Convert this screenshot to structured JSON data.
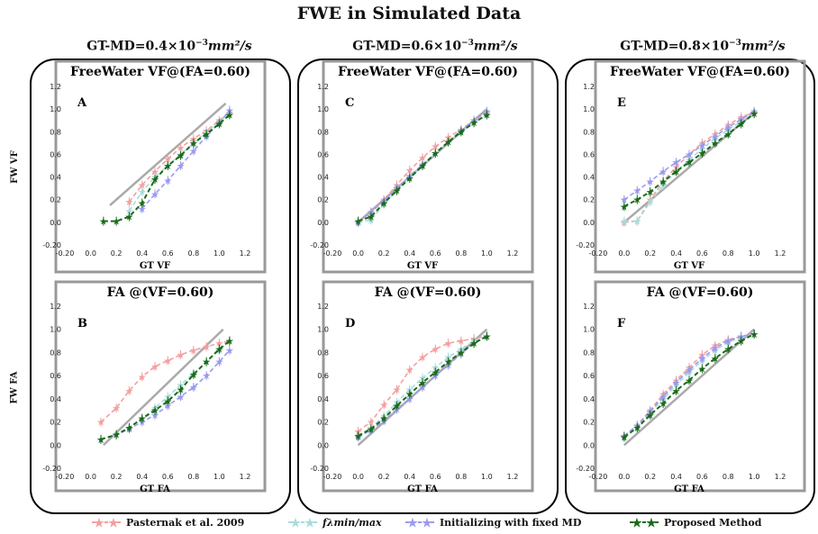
{
  "main_title": "FWE in Simulated Data",
  "column_titles": [
    {
      "prefix": "GT-MD=0.4×10",
      "exp": "−3",
      "unit": "mm²/s"
    },
    {
      "prefix": "GT-MD=0.6×10",
      "exp": "−3",
      "unit": "mm²/s"
    },
    {
      "prefix": "GT-MD=0.8×10",
      "exp": "−3",
      "unit": "mm²/s"
    }
  ],
  "row_labels": [
    "FW VF",
    "FW FA"
  ],
  "legend": [
    {
      "label": "Pasternak et al. 2009",
      "color": "#f4a0a0"
    },
    {
      "label": "fλmin/max",
      "color": "#a8dcdc"
    },
    {
      "label": "Initializing with fixed MD",
      "color": "#9a9af0"
    },
    {
      "label": "Proposed Method",
      "color": "#1a6b1a"
    }
  ],
  "chart_data": [
    {
      "type": "line",
      "panel_label": "A",
      "title": "FreeWater VF@(FA=0.60)",
      "xlabel": "GT VF",
      "ylabel": "FW VF",
      "xlim": [
        -0.2,
        1.2
      ],
      "ylim": [
        -0.2,
        1.2
      ],
      "xticks": [
        "-0.20",
        "0.0",
        "0.2",
        "0.4",
        "0.6",
        "0.8",
        "1.0",
        "1.2"
      ],
      "yticks": [
        "-0.20",
        "0.0",
        "0.2",
        "0.4",
        "0.6",
        "0.8",
        "1.0",
        "1.2"
      ],
      "identity": [
        [
          0.15,
          0.15
        ],
        [
          1.05,
          1.05
        ]
      ],
      "series": [
        {
          "name": "Pasternak et al. 2009",
          "color": "#f4a0a0",
          "x": [
            0.3,
            0.4,
            0.5,
            0.6,
            0.7,
            0.8,
            0.9,
            1.0,
            1.08
          ],
          "y": [
            0.18,
            0.33,
            0.45,
            0.56,
            0.66,
            0.74,
            0.81,
            0.9,
            0.97
          ]
        },
        {
          "name": "fλmin/max",
          "color": "#a8dcdc",
          "x": [
            0.3,
            0.4,
            0.5,
            0.6,
            0.7,
            0.8,
            0.9,
            1.0,
            1.08
          ],
          "y": [
            0.1,
            0.27,
            0.4,
            0.5,
            0.6,
            0.7,
            0.8,
            0.89,
            0.96
          ]
        },
        {
          "name": "Initializing with fixed MD",
          "color": "#9a9af0",
          "x": [
            0.4,
            0.5,
            0.6,
            0.7,
            0.8,
            0.9,
            1.0,
            1.08
          ],
          "y": [
            0.12,
            0.25,
            0.37,
            0.5,
            0.63,
            0.76,
            0.88,
            0.99
          ]
        },
        {
          "name": "Proposed Method",
          "color": "#1a6b1a",
          "x": [
            0.1,
            0.2,
            0.3,
            0.4,
            0.5,
            0.6,
            0.7,
            0.8,
            0.9,
            1.0,
            1.08
          ],
          "y": [
            0.01,
            0.01,
            0.05,
            0.17,
            0.38,
            0.5,
            0.59,
            0.7,
            0.78,
            0.87,
            0.95
          ]
        }
      ]
    },
    {
      "type": "line",
      "panel_label": "B",
      "title": "FA @(VF=0.60)",
      "xlabel": "GT FA",
      "ylabel": "FW FA",
      "xlim": [
        -0.2,
        1.2
      ],
      "ylim": [
        -0.2,
        1.2
      ],
      "xticks": [
        "-0.20",
        "0.0",
        "0.2",
        "0.4",
        "0.6",
        "0.8",
        "1.0",
        "1.2"
      ],
      "yticks": [
        "-0.20",
        "0.0",
        "0.2",
        "0.4",
        "0.6",
        "0.8",
        "1.0",
        "1.2"
      ],
      "identity": [
        [
          0.1,
          0.0
        ],
        [
          1.03,
          1.0
        ]
      ],
      "series": [
        {
          "name": "Pasternak et al. 2009",
          "color": "#f4a0a0",
          "x": [
            0.08,
            0.2,
            0.3,
            0.4,
            0.5,
            0.6,
            0.7,
            0.8,
            0.9,
            1.0,
            1.08
          ],
          "y": [
            0.2,
            0.32,
            0.47,
            0.59,
            0.68,
            0.73,
            0.78,
            0.82,
            0.85,
            0.88,
            0.9
          ]
        },
        {
          "name": "fλmin/max",
          "color": "#a8dcdc",
          "x": [
            0.08,
            0.2,
            0.3,
            0.4,
            0.5,
            0.6,
            0.7,
            0.8,
            0.9,
            1.0,
            1.08
          ],
          "y": [
            0.05,
            0.09,
            0.15,
            0.23,
            0.32,
            0.42,
            0.52,
            0.62,
            0.72,
            0.82,
            0.9
          ]
        },
        {
          "name": "Initializing with fixed MD",
          "color": "#9a9af0",
          "x": [
            0.08,
            0.2,
            0.3,
            0.4,
            0.5,
            0.6,
            0.7,
            0.8,
            0.9,
            1.0,
            1.08
          ],
          "y": [
            0.05,
            0.09,
            0.14,
            0.2,
            0.26,
            0.34,
            0.42,
            0.5,
            0.6,
            0.72,
            0.82
          ]
        },
        {
          "name": "Proposed Method",
          "color": "#1a6b1a",
          "x": [
            0.08,
            0.2,
            0.3,
            0.4,
            0.5,
            0.6,
            0.7,
            0.8,
            0.9,
            1.0,
            1.08
          ],
          "y": [
            0.05,
            0.09,
            0.15,
            0.23,
            0.3,
            0.38,
            0.48,
            0.61,
            0.72,
            0.83,
            0.9
          ]
        }
      ]
    },
    {
      "type": "line",
      "panel_label": "C",
      "title": "FreeWater VF@(FA=0.60)",
      "xlabel": "GT VF",
      "ylabel": "FW VF",
      "xlim": [
        -0.2,
        1.2
      ],
      "ylim": [
        -0.2,
        1.2
      ],
      "xticks": [
        "-0.20",
        "0.0",
        "0.2",
        "0.4",
        "0.6",
        "0.8",
        "1.0",
        "1.2"
      ],
      "yticks": [
        "-0.20",
        "0.0",
        "0.2",
        "0.4",
        "0.6",
        "0.8",
        "1.0",
        "1.2"
      ],
      "identity": [
        [
          0.0,
          0.0
        ],
        [
          1.0,
          1.0
        ]
      ],
      "series": [
        {
          "name": "Pasternak et al. 2009",
          "color": "#f4a0a0",
          "x": [
            0.0,
            0.1,
            0.2,
            0.3,
            0.4,
            0.5,
            0.6,
            0.7,
            0.8,
            0.9,
            1.0
          ],
          "y": [
            0.0,
            0.09,
            0.2,
            0.33,
            0.46,
            0.57,
            0.67,
            0.75,
            0.82,
            0.9,
            0.97
          ]
        },
        {
          "name": "fλmin/max",
          "color": "#a8dcdc",
          "x": [
            0.0,
            0.1,
            0.2,
            0.3,
            0.4,
            0.5,
            0.6,
            0.7,
            0.8,
            0.9,
            1.0
          ],
          "y": [
            0.0,
            0.02,
            0.16,
            0.28,
            0.4,
            0.5,
            0.61,
            0.71,
            0.8,
            0.88,
            0.95
          ]
        },
        {
          "name": "Initializing with fixed MD",
          "color": "#9a9af0",
          "x": [
            0.0,
            0.1,
            0.2,
            0.3,
            0.4,
            0.5,
            0.6,
            0.7,
            0.8,
            0.9,
            1.0
          ],
          "y": [
            0.0,
            0.09,
            0.19,
            0.3,
            0.41,
            0.51,
            0.61,
            0.71,
            0.81,
            0.9,
            0.98
          ]
        },
        {
          "name": "Proposed Method",
          "color": "#1a6b1a",
          "x": [
            0.0,
            0.1,
            0.2,
            0.3,
            0.4,
            0.5,
            0.6,
            0.7,
            0.8,
            0.9,
            1.0
          ],
          "y": [
            0.01,
            0.05,
            0.17,
            0.28,
            0.39,
            0.5,
            0.61,
            0.71,
            0.8,
            0.88,
            0.95
          ]
        }
      ]
    },
    {
      "type": "line",
      "panel_label": "D",
      "title": "FA @(VF=0.60)",
      "xlabel": "GT FA",
      "ylabel": "FW FA",
      "xlim": [
        -0.2,
        1.2
      ],
      "ylim": [
        -0.2,
        1.2
      ],
      "xticks": [
        "-0.20",
        "0.0",
        "0.2",
        "0.4",
        "0.6",
        "0.8",
        "1.0",
        "1.2"
      ],
      "yticks": [
        "-0.20",
        "0.0",
        "0.2",
        "0.4",
        "0.6",
        "0.8",
        "1.0",
        "1.2"
      ],
      "identity": [
        [
          0.0,
          0.0
        ],
        [
          1.0,
          1.0
        ]
      ],
      "series": [
        {
          "name": "Pasternak et al. 2009",
          "color": "#f4a0a0",
          "x": [
            0.0,
            0.1,
            0.2,
            0.3,
            0.4,
            0.5,
            0.6,
            0.7,
            0.8,
            0.9,
            1.0
          ],
          "y": [
            0.12,
            0.2,
            0.35,
            0.48,
            0.65,
            0.76,
            0.83,
            0.88,
            0.9,
            0.92,
            0.94
          ]
        },
        {
          "name": "fλmin/max",
          "color": "#a8dcdc",
          "x": [
            0.0,
            0.1,
            0.2,
            0.3,
            0.4,
            0.5,
            0.6,
            0.7,
            0.8,
            0.9,
            1.0
          ],
          "y": [
            0.08,
            0.15,
            0.25,
            0.37,
            0.48,
            0.58,
            0.67,
            0.76,
            0.83,
            0.9,
            0.94
          ]
        },
        {
          "name": "Initializing with fixed MD",
          "color": "#9a9af0",
          "x": [
            0.0,
            0.1,
            0.2,
            0.3,
            0.4,
            0.5,
            0.6,
            0.7,
            0.8,
            0.9,
            1.0
          ],
          "y": [
            0.07,
            0.13,
            0.21,
            0.31,
            0.4,
            0.5,
            0.6,
            0.69,
            0.79,
            0.88,
            0.94
          ]
        },
        {
          "name": "Proposed Method",
          "color": "#1a6b1a",
          "x": [
            0.0,
            0.1,
            0.2,
            0.3,
            0.4,
            0.5,
            0.6,
            0.7,
            0.8,
            0.9,
            1.0
          ],
          "y": [
            0.08,
            0.14,
            0.23,
            0.34,
            0.44,
            0.54,
            0.63,
            0.72,
            0.8,
            0.88,
            0.94
          ]
        }
      ]
    },
    {
      "type": "line",
      "panel_label": "E",
      "title": "FreeWater VF@(FA=0.60)",
      "xlabel": "GT VF",
      "ylabel": "FW VF",
      "xlim": [
        -0.2,
        1.2
      ],
      "ylim": [
        -0.2,
        1.2
      ],
      "xticks": [
        "-0.20",
        "0.0",
        "0.2",
        "0.4",
        "0.6",
        "0.8",
        "1.0",
        "1.2"
      ],
      "yticks": [
        "-0.20",
        "0.0",
        "0.2",
        "0.4",
        "0.6",
        "0.8",
        "1.0",
        "1.2"
      ],
      "identity": [
        [
          0.0,
          0.0
        ],
        [
          1.0,
          0.97
        ]
      ],
      "series": [
        {
          "name": "Pasternak et al. 2009",
          "color": "#f4a0a0",
          "x": [
            0.0,
            0.1,
            0.2,
            0.3,
            0.4,
            0.5,
            0.6,
            0.7,
            0.8,
            0.9,
            1.0
          ],
          "y": [
            0.0,
            0.01,
            0.2,
            0.36,
            0.49,
            0.6,
            0.7,
            0.78,
            0.86,
            0.93,
            0.97
          ]
        },
        {
          "name": "fλmin/max",
          "color": "#a8dcdc",
          "x": [
            0.0,
            0.1,
            0.2,
            0.3,
            0.4,
            0.5,
            0.6,
            0.7,
            0.8,
            0.9,
            1.0
          ],
          "y": [
            0.01,
            0.01,
            0.18,
            0.33,
            0.45,
            0.55,
            0.65,
            0.74,
            0.82,
            0.89,
            0.96
          ]
        },
        {
          "name": "Initializing with fixed MD",
          "color": "#9a9af0",
          "x": [
            0.0,
            0.1,
            0.2,
            0.3,
            0.4,
            0.5,
            0.6,
            0.7,
            0.8,
            0.9,
            1.0
          ],
          "y": [
            0.2,
            0.28,
            0.36,
            0.45,
            0.53,
            0.6,
            0.68,
            0.76,
            0.84,
            0.91,
            0.98
          ]
        },
        {
          "name": "Proposed Method",
          "color": "#1a6b1a",
          "x": [
            0.0,
            0.1,
            0.2,
            0.3,
            0.4,
            0.5,
            0.6,
            0.7,
            0.8,
            0.9,
            1.0
          ],
          "y": [
            0.14,
            0.2,
            0.27,
            0.36,
            0.45,
            0.53,
            0.61,
            0.7,
            0.78,
            0.87,
            0.96
          ]
        }
      ]
    },
    {
      "type": "line",
      "panel_label": "F",
      "title": "FA @(VF=0.60)",
      "xlabel": "GT FA",
      "ylabel": "FW FA",
      "xlim": [
        -0.2,
        1.2
      ],
      "ylim": [
        -0.2,
        1.2
      ],
      "xticks": [
        "-0.20",
        "0.0",
        "0.2",
        "0.4",
        "0.6",
        "0.8",
        "1.0",
        "1.2"
      ],
      "yticks": [
        "-0.20",
        "0.0",
        "0.2",
        "0.4",
        "0.6",
        "0.8",
        "1.0",
        "1.2"
      ],
      "identity": [
        [
          0.0,
          0.0
        ],
        [
          1.0,
          1.0
        ]
      ],
      "series": [
        {
          "name": "Pasternak et al. 2009",
          "color": "#f4a0a0",
          "x": [
            0.0,
            0.1,
            0.2,
            0.3,
            0.4,
            0.5,
            0.6,
            0.7,
            0.8,
            0.9,
            1.0
          ],
          "y": [
            0.08,
            0.17,
            0.3,
            0.44,
            0.56,
            0.67,
            0.78,
            0.86,
            0.91,
            0.94,
            0.96
          ]
        },
        {
          "name": "fλmin/max",
          "color": "#a8dcdc",
          "x": [
            0.0,
            0.1,
            0.2,
            0.3,
            0.4,
            0.5,
            0.6,
            0.7,
            0.8,
            0.9,
            1.0
          ],
          "y": [
            0.07,
            0.16,
            0.28,
            0.4,
            0.52,
            0.63,
            0.73,
            0.82,
            0.89,
            0.93,
            0.96
          ]
        },
        {
          "name": "Initializing with fixed MD",
          "color": "#9a9af0",
          "x": [
            0.0,
            0.1,
            0.2,
            0.3,
            0.4,
            0.5,
            0.6,
            0.7,
            0.8,
            0.9,
            1.0
          ],
          "y": [
            0.08,
            0.17,
            0.29,
            0.42,
            0.54,
            0.65,
            0.75,
            0.84,
            0.9,
            0.94,
            0.96
          ]
        },
        {
          "name": "Proposed Method",
          "color": "#1a6b1a",
          "x": [
            0.0,
            0.1,
            0.2,
            0.3,
            0.4,
            0.5,
            0.6,
            0.7,
            0.8,
            0.9,
            1.0
          ],
          "y": [
            0.07,
            0.15,
            0.26,
            0.36,
            0.47,
            0.56,
            0.66,
            0.75,
            0.83,
            0.9,
            0.96
          ]
        }
      ]
    }
  ]
}
